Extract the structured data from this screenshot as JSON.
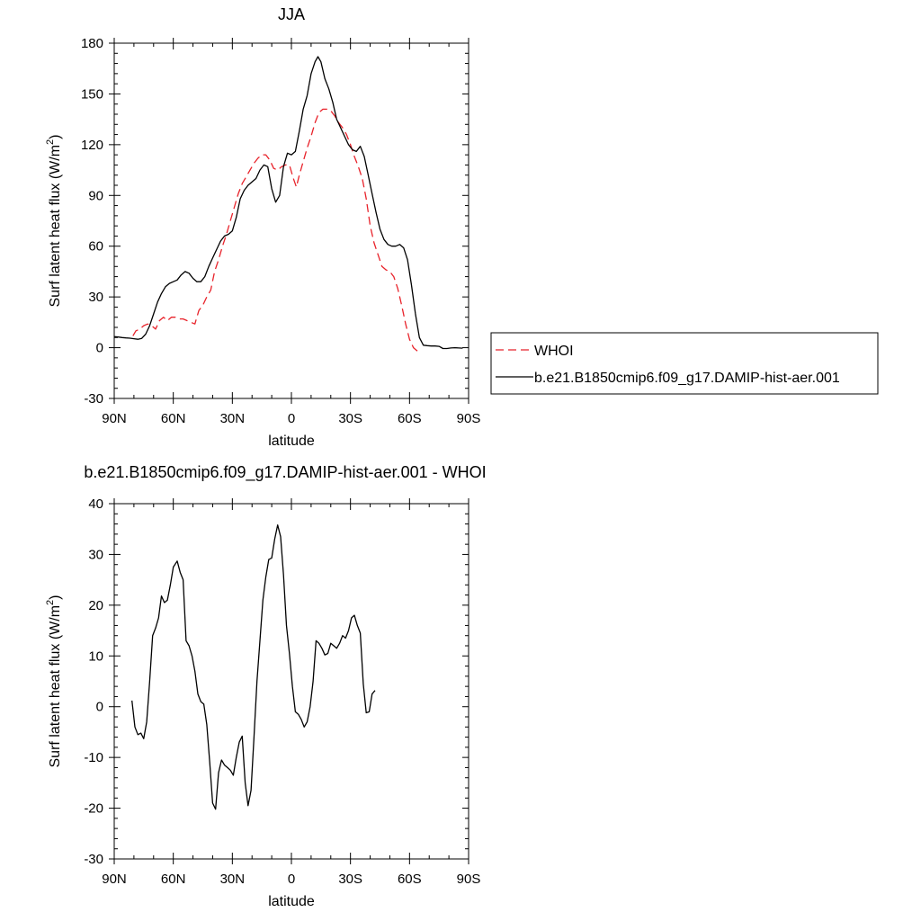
{
  "chart_data": [
    {
      "type": "line",
      "title": "JJA",
      "xlabel": "latitude",
      "ylabel": "Surf latent heat flux (W/m",
      "ylabel_sup": "2",
      "ylabel_close": ")",
      "xlim": [
        90,
        -90
      ],
      "ylim": [
        -30,
        180
      ],
      "xticks": [
        90,
        60,
        30,
        0,
        -30,
        -60,
        -90
      ],
      "xticklabels": [
        "90N",
        "60N",
        "30N",
        "0",
        "30S",
        "60S",
        "90S"
      ],
      "yticks": [
        -30,
        0,
        30,
        60,
        90,
        120,
        150,
        180
      ],
      "yticklabels": [
        "-30",
        "0",
        "30",
        "60",
        "90",
        "120",
        "150",
        "180"
      ],
      "legend_position": "right",
      "series": [
        {
          "name": "WHOI",
          "color": "#e8222a",
          "dash": "dashed",
          "points": [
            [
              80.5,
              7
            ],
            [
              79,
              10
            ],
            [
              77,
              11
            ],
            [
              75,
              13
            ],
            [
              73,
              14
            ],
            [
              71,
              13
            ],
            [
              69,
              11
            ],
            [
              67,
              16
            ],
            [
              65,
              18
            ],
            [
              63,
              16
            ],
            [
              61,
              18
            ],
            [
              59,
              18
            ],
            [
              57,
              17
            ],
            [
              55,
              17
            ],
            [
              53,
              16
            ],
            [
              51,
              15
            ],
            [
              49,
              14
            ],
            [
              47,
              22
            ],
            [
              45,
              25
            ],
            [
              43,
              30
            ],
            [
              41,
              34
            ],
            [
              39,
              45
            ],
            [
              37,
              52
            ],
            [
              35,
              60
            ],
            [
              33,
              67
            ],
            [
              31,
              75
            ],
            [
              29,
              83
            ],
            [
              27,
              91
            ],
            [
              25,
              97
            ],
            [
              23,
              101
            ],
            [
              21,
              105
            ],
            [
              19,
              109
            ],
            [
              17,
              112
            ],
            [
              15,
              114
            ],
            [
              13,
              114
            ],
            [
              11,
              111
            ],
            [
              9,
              106
            ],
            [
              7,
              105
            ],
            [
              5,
              107
            ],
            [
              3,
              108
            ],
            [
              1,
              108
            ],
            [
              -1,
              100
            ],
            [
              -2.5,
              95
            ],
            [
              -4,
              102
            ],
            [
              -6,
              110
            ],
            [
              -8,
              118
            ],
            [
              -10,
              125
            ],
            [
              -12,
              133
            ],
            [
              -14,
              139
            ],
            [
              -16,
              141
            ],
            [
              -18,
              141
            ],
            [
              -20,
              140
            ],
            [
              -22,
              137
            ],
            [
              -24,
              133
            ],
            [
              -26,
              130
            ],
            [
              -28,
              126
            ],
            [
              -30,
              120
            ],
            [
              -32,
              113
            ],
            [
              -34,
              107
            ],
            [
              -36,
              100
            ],
            [
              -38,
              88
            ],
            [
              -40,
              72
            ],
            [
              -42,
              62
            ],
            [
              -44,
              55
            ],
            [
              -46,
              48
            ],
            [
              -48,
              46
            ],
            [
              -50,
              45
            ],
            [
              -52,
              42
            ],
            [
              -54,
              35
            ],
            [
              -56,
              25
            ],
            [
              -58,
              14
            ],
            [
              -60,
              5
            ],
            [
              -62,
              0
            ],
            [
              -64,
              -2
            ]
          ]
        },
        {
          "name": "b.e21.B1850cmip6.f09_g17.DAMIP-hist-aer.001",
          "color": "#000000",
          "dash": "solid",
          "points": [
            [
              90,
              6.5
            ],
            [
              88,
              6.3
            ],
            [
              86,
              6
            ],
            [
              84,
              5.8
            ],
            [
              82,
              5.6
            ],
            [
              80,
              5.3
            ],
            [
              78,
              5
            ],
            [
              76,
              5.5
            ],
            [
              74,
              8
            ],
            [
              72,
              13
            ],
            [
              70,
              20
            ],
            [
              68,
              27
            ],
            [
              66,
              32
            ],
            [
              64,
              36
            ],
            [
              62,
              38
            ],
            [
              60,
              39
            ],
            [
              58,
              40
            ],
            [
              56,
              43
            ],
            [
              54,
              45
            ],
            [
              52,
              44
            ],
            [
              50,
              41
            ],
            [
              48,
              39
            ],
            [
              46,
              39
            ],
            [
              44,
              42
            ],
            [
              42,
              48
            ],
            [
              40,
              53
            ],
            [
              38,
              58
            ],
            [
              36,
              63
            ],
            [
              34,
              66
            ],
            [
              32,
              67
            ],
            [
              30,
              69
            ],
            [
              28,
              77
            ],
            [
              26,
              88
            ],
            [
              24,
              93
            ],
            [
              22,
              96
            ],
            [
              20,
              98
            ],
            [
              18,
              100
            ],
            [
              16,
              105
            ],
            [
              14,
              108
            ],
            [
              12,
              107
            ],
            [
              10,
              94
            ],
            [
              8,
              86
            ],
            [
              6,
              90
            ],
            [
              4,
              107
            ],
            [
              2,
              115
            ],
            [
              0,
              114
            ],
            [
              -2,
              116
            ],
            [
              -4,
              128
            ],
            [
              -6,
              141
            ],
            [
              -8,
              149
            ],
            [
              -10,
              162
            ],
            [
              -12,
              169
            ],
            [
              -13.5,
              172
            ],
            [
              -15,
              169
            ],
            [
              -17,
              159
            ],
            [
              -19,
              153
            ],
            [
              -21,
              145
            ],
            [
              -23,
              135
            ],
            [
              -25,
              130
            ],
            [
              -27,
              125
            ],
            [
              -29,
              120
            ],
            [
              -31,
              117
            ],
            [
              -33,
              116
            ],
            [
              -35,
              119
            ],
            [
              -37,
              113
            ],
            [
              -39,
              102
            ],
            [
              -41,
              91
            ],
            [
              -43,
              80
            ],
            [
              -45,
              70
            ],
            [
              -47,
              64
            ],
            [
              -49,
              61
            ],
            [
              -51,
              60
            ],
            [
              -53,
              60
            ],
            [
              -55,
              61
            ],
            [
              -57,
              59
            ],
            [
              -59,
              52
            ],
            [
              -61,
              37
            ],
            [
              -63,
              20
            ],
            [
              -65,
              6
            ],
            [
              -67,
              1.5
            ],
            [
              -69,
              1.2
            ],
            [
              -71,
              1
            ],
            [
              -73,
              1
            ],
            [
              -75,
              0.8
            ],
            [
              -77,
              -0.5
            ],
            [
              -79,
              -0.5
            ],
            [
              -81,
              -0.2
            ],
            [
              -83,
              0
            ],
            [
              -85,
              -0.2
            ],
            [
              -87,
              -0.3
            ]
          ]
        }
      ]
    },
    {
      "type": "line",
      "title": "b.e21.B1850cmip6.f09_g17.DAMIP-hist-aer.001 - WHOI",
      "xlabel": "latitude",
      "ylabel": "Surf latent heat flux (W/m",
      "ylabel_sup": "2",
      "ylabel_close": ")",
      "xlim": [
        90,
        -90
      ],
      "ylim": [
        -30,
        40
      ],
      "xticks": [
        90,
        60,
        30,
        0,
        -30,
        -60,
        -90
      ],
      "xticklabels": [
        "90N",
        "60N",
        "30N",
        "0",
        "30S",
        "60S",
        "90S"
      ],
      "yticks": [
        -30,
        -20,
        -10,
        0,
        10,
        20,
        30,
        40
      ],
      "yticklabels": [
        "-30",
        "-20",
        "-10",
        "0",
        "10",
        "20",
        "30",
        "40"
      ],
      "series": [
        {
          "color": "#000000",
          "dash": "solid",
          "points": [
            [
              81,
              1.2
            ],
            [
              79.5,
              -4
            ],
            [
              78,
              -5.5
            ],
            [
              76.5,
              -5.2
            ],
            [
              75,
              -6.3
            ],
            [
              73.5,
              -3
            ],
            [
              72,
              5
            ],
            [
              70.5,
              14
            ],
            [
              69,
              15.5
            ],
            [
              67.5,
              17.5
            ],
            [
              66,
              21.8
            ],
            [
              64.5,
              20.5
            ],
            [
              63,
              21
            ],
            [
              61.5,
              24
            ],
            [
              60,
              27.5
            ],
            [
              58,
              28.7
            ],
            [
              56.5,
              26.5
            ],
            [
              55,
              25
            ],
            [
              53.5,
              13
            ],
            [
              52,
              12
            ],
            [
              50.5,
              10
            ],
            [
              49,
              7
            ],
            [
              47.5,
              2.5
            ],
            [
              46,
              1
            ],
            [
              44.5,
              0.5
            ],
            [
              43,
              -3.5
            ],
            [
              41.5,
              -11
            ],
            [
              40,
              -19
            ],
            [
              38.5,
              -20.2
            ],
            [
              37,
              -13
            ],
            [
              35.5,
              -10.5
            ],
            [
              34,
              -11.5
            ],
            [
              32.5,
              -12
            ],
            [
              31,
              -12.5
            ],
            [
              29.5,
              -13.5
            ],
            [
              28,
              -10
            ],
            [
              26.5,
              -7
            ],
            [
              25,
              -5.8
            ],
            [
              23.5,
              -15
            ],
            [
              22,
              -19.5
            ],
            [
              20.5,
              -16.5
            ],
            [
              19,
              -6
            ],
            [
              17.5,
              5
            ],
            [
              16,
              13
            ],
            [
              14.5,
              21
            ],
            [
              13,
              25.5
            ],
            [
              11.5,
              29
            ],
            [
              10,
              29.3
            ],
            [
              8.5,
              33
            ],
            [
              7,
              35.8
            ],
            [
              5.5,
              33.5
            ],
            [
              4,
              26
            ],
            [
              2.5,
              16
            ],
            [
              1,
              10.5
            ],
            [
              -0.5,
              4
            ],
            [
              -2,
              -1
            ],
            [
              -3.5,
              -1.5
            ],
            [
              -5,
              -2.5
            ],
            [
              -6.5,
              -4
            ],
            [
              -8,
              -3
            ],
            [
              -9.5,
              0
            ],
            [
              -11,
              5
            ],
            [
              -12.5,
              13
            ],
            [
              -14,
              12.5
            ],
            [
              -15.5,
              11.5
            ],
            [
              -17,
              10.2
            ],
            [
              -18.5,
              10.5
            ],
            [
              -20,
              12.5
            ],
            [
              -21.5,
              12
            ],
            [
              -23,
              11.5
            ],
            [
              -24.5,
              12.5
            ],
            [
              -26,
              14
            ],
            [
              -27.5,
              13.5
            ],
            [
              -29,
              15
            ],
            [
              -30.5,
              17.5
            ],
            [
              -32,
              18
            ],
            [
              -33.5,
              16
            ],
            [
              -35,
              14.5
            ],
            [
              -36.5,
              4.5
            ],
            [
              -38,
              -1.2
            ],
            [
              -39.5,
              -1
            ],
            [
              -41,
              2.5
            ],
            [
              -42.5,
              3.2
            ]
          ]
        }
      ]
    }
  ]
}
